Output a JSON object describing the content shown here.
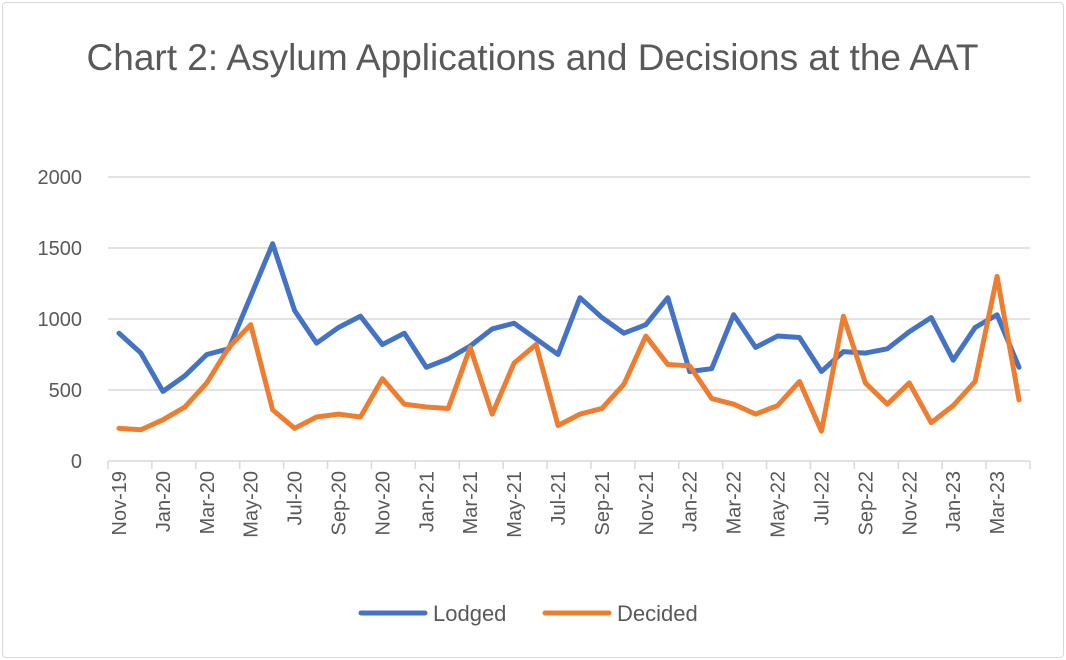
{
  "chart_data": {
    "type": "line",
    "title": "Chart 2: Asylum Applications and Decisions at the AAT",
    "xlabel": "",
    "ylabel": "",
    "ylim": [
      0,
      2000
    ],
    "yticks": [
      "0",
      "500",
      "1000",
      "1500",
      "2000"
    ],
    "grid": true,
    "legend": "bottom",
    "categories": [
      "Nov-19",
      "Dec-19",
      "Jan-20",
      "Feb-20",
      "Mar-20",
      "Apr-20",
      "May-20",
      "Jun-20",
      "Jul-20",
      "Aug-20",
      "Sep-20",
      "Oct-20",
      "Nov-20",
      "Dec-20",
      "Jan-21",
      "Feb-21",
      "Mar-21",
      "Apr-21",
      "May-21",
      "Jun-21",
      "Jul-21",
      "Aug-21",
      "Sep-21",
      "Oct-21",
      "Nov-21",
      "Dec-21",
      "Jan-22",
      "Feb-22",
      "Mar-22",
      "Apr-22",
      "May-22",
      "Jun-22",
      "Jul-22",
      "Aug-22",
      "Sep-22",
      "Oct-22",
      "Nov-22",
      "Dec-22",
      "Jan-23",
      "Feb-23",
      "Mar-23",
      "Apr-23"
    ],
    "series": [
      {
        "name": "Lodged",
        "color": "#4472c4",
        "values": [
          900,
          760,
          490,
          600,
          750,
          790,
          1160,
          1530,
          1060,
          830,
          940,
          1020,
          820,
          900,
          660,
          720,
          810,
          930,
          970,
          860,
          750,
          1150,
          1010,
          900,
          960,
          1150,
          630,
          650,
          1030,
          800,
          880,
          870,
          630,
          770,
          760,
          790,
          910,
          1010,
          710,
          940,
          1030,
          660
        ]
      },
      {
        "name": "Decided",
        "color": "#ed7d31",
        "values": [
          230,
          220,
          290,
          380,
          550,
          800,
          960,
          360,
          230,
          310,
          330,
          310,
          580,
          400,
          380,
          370,
          800,
          330,
          690,
          820,
          250,
          330,
          370,
          540,
          880,
          680,
          670,
          440,
          400,
          330,
          390,
          560,
          210,
          1020,
          550,
          400,
          550,
          270,
          390,
          560,
          1300,
          430
        ]
      }
    ]
  }
}
